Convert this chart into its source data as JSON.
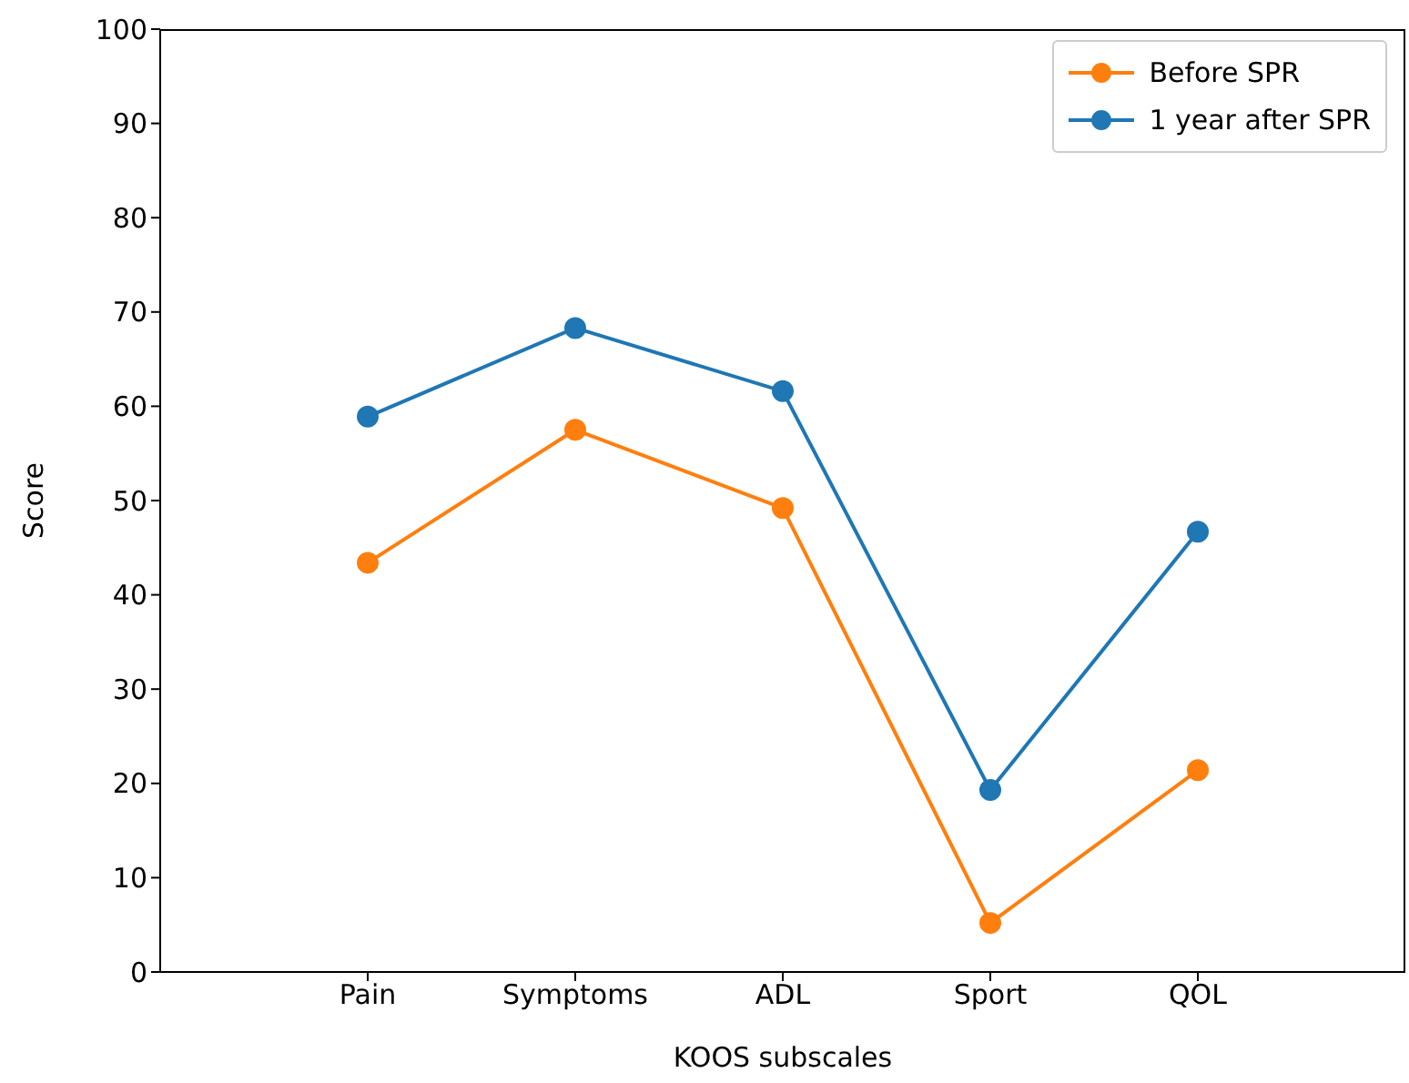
{
  "chart_data": {
    "type": "line",
    "xlabel": "KOOS subscales",
    "ylabel": "Score",
    "categories": [
      "Pain",
      "Symptoms",
      "ADL",
      "Sport",
      "QOL"
    ],
    "series": [
      {
        "name": "Before SPR",
        "color": "#ff7f0e",
        "values": [
          43.4,
          57.5,
          49.2,
          5.2,
          21.4
        ]
      },
      {
        "name": "1 year after SPR",
        "color": "#1f77b4",
        "values": [
          58.9,
          68.3,
          61.6,
          19.3,
          46.7
        ]
      }
    ],
    "ylim": [
      0,
      100
    ],
    "yticks": [
      0,
      10,
      20,
      30,
      40,
      50,
      60,
      70,
      80,
      90,
      100
    ],
    "grid": false,
    "legend": "top right",
    "marker": "circle",
    "line_style": "solid"
  }
}
